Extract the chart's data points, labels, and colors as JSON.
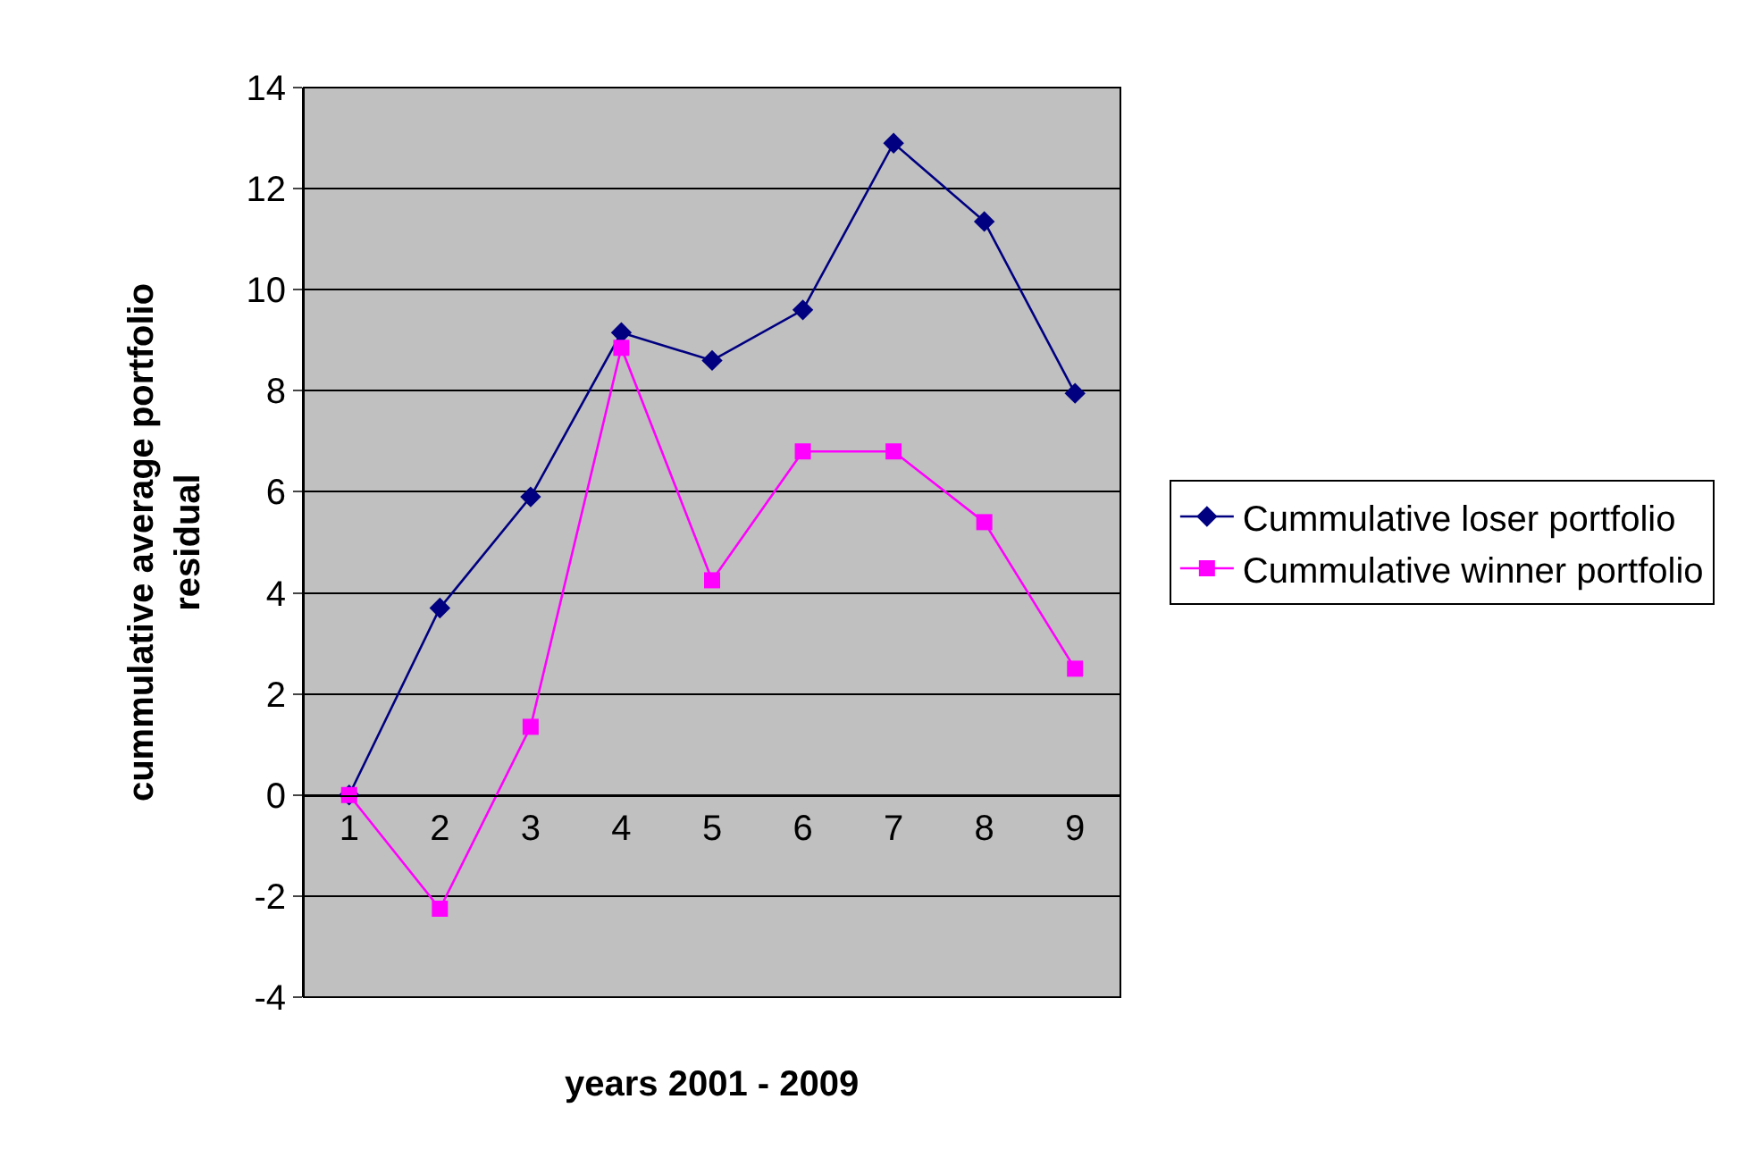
{
  "chart_data": {
    "type": "line",
    "xlabel": "years 2001 - 2009",
    "ylabel": "cummulative average portfolio residual",
    "categories": [
      "1",
      "2",
      "3",
      "4",
      "5",
      "6",
      "7",
      "8",
      "9"
    ],
    "series": [
      {
        "name": "Cummulative loser portfolio",
        "color": "#000080",
        "marker": "diamond",
        "values": [
          0,
          3.7,
          5.9,
          9.15,
          8.6,
          9.6,
          12.9,
          11.35,
          7.95
        ]
      },
      {
        "name": "Cummulative winner portfolio",
        "color": "#ff00ff",
        "marker": "square",
        "values": [
          0,
          -2.25,
          1.35,
          8.85,
          4.25,
          6.8,
          6.8,
          5.4,
          2.5
        ]
      }
    ],
    "ylim": [
      -4,
      14
    ],
    "yticks": [
      -4,
      -2,
      0,
      2,
      4,
      6,
      8,
      10,
      12,
      14
    ],
    "grid": "y",
    "legend": "right"
  }
}
